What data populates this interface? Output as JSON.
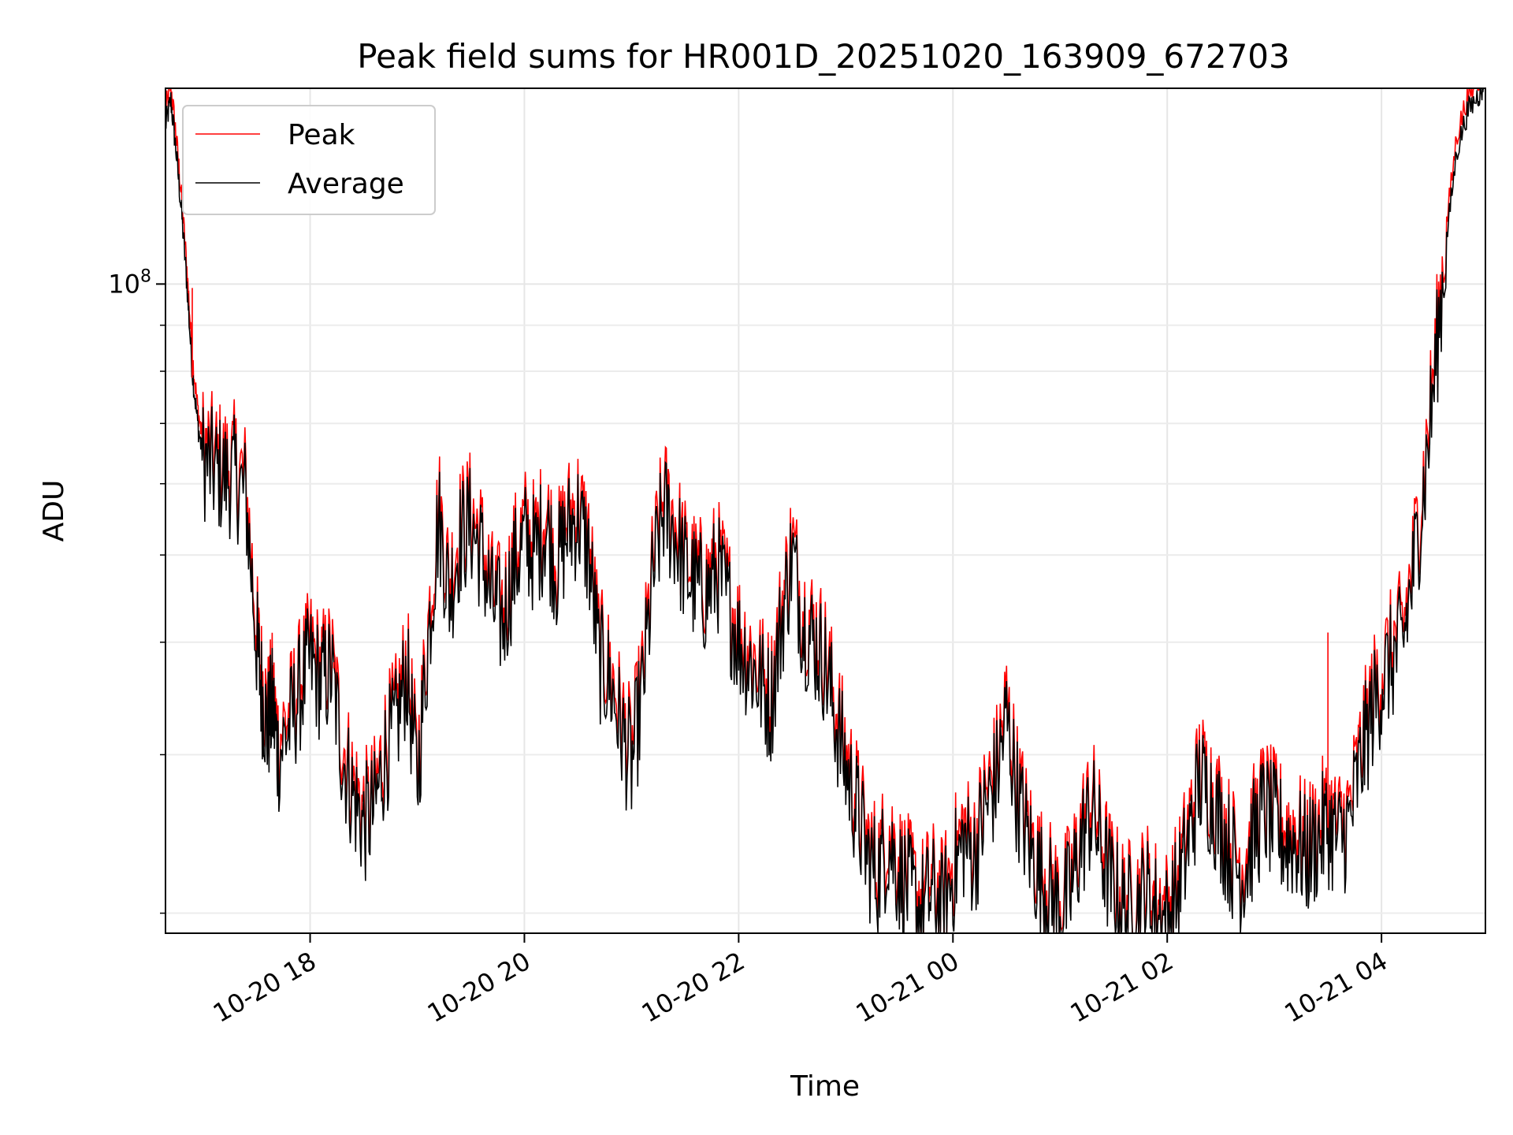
{
  "chart_data": {
    "type": "line",
    "title": "Peak field sums for HR001D_20251020_163909_672703",
    "xlabel": "Time",
    "ylabel": "ADU",
    "y_scale": "log",
    "ylim": [
      19000000,
      165000000
    ],
    "xlim_hours": [
      16.65,
      28.97
    ],
    "x_ticks": [
      {
        "hour": 18,
        "label": "10-20 18"
      },
      {
        "hour": 20,
        "label": "10-20 20"
      },
      {
        "hour": 22,
        "label": "10-20 22"
      },
      {
        "hour": 24,
        "label": "10-21 00"
      },
      {
        "hour": 26,
        "label": "10-21 02"
      },
      {
        "hour": 28,
        "label": "10-21 04"
      }
    ],
    "y_major_ticks": [
      {
        "value": 100000000,
        "base": "10",
        "exp": "8"
      }
    ],
    "y_minor_ticks": [
      20000000,
      30000000,
      40000000,
      50000000,
      60000000,
      70000000,
      80000000,
      90000000,
      200000000
    ],
    "grid": true,
    "legend": {
      "position": "upper-left"
    },
    "series": [
      {
        "name": "Peak",
        "color": "#ff0000",
        "spikes": [
          {
            "hour": 16.9,
            "value": 99000000
          },
          {
            "hour": 18.22,
            "value": 38000000
          },
          {
            "hour": 27.5,
            "value": 41000000
          }
        ]
      },
      {
        "name": "Average",
        "color": "#000000",
        "time_hours": [
          16.65,
          16.7,
          16.75,
          16.8,
          16.85,
          16.9,
          16.95,
          17.0,
          17.1,
          17.2,
          17.3,
          17.4,
          17.5,
          17.55,
          17.6,
          17.65,
          17.7,
          17.8,
          17.9,
          18.0,
          18.1,
          18.2,
          18.3,
          18.4,
          18.5,
          18.6,
          18.7,
          18.8,
          18.9,
          19.0,
          19.1,
          19.2,
          19.3,
          19.4,
          19.5,
          19.6,
          19.7,
          19.8,
          19.9,
          20.0,
          20.1,
          20.2,
          20.3,
          20.4,
          20.5,
          20.6,
          20.7,
          20.8,
          20.9,
          21.0,
          21.1,
          21.2,
          21.3,
          21.4,
          21.5,
          21.6,
          21.7,
          21.8,
          21.9,
          22.0,
          22.1,
          22.2,
          22.3,
          22.4,
          22.5,
          22.6,
          22.7,
          22.8,
          22.9,
          23.0,
          23.1,
          23.2,
          23.3,
          23.4,
          23.5,
          23.6,
          23.7,
          23.8,
          23.9,
          24.0,
          24.1,
          24.2,
          24.3,
          24.4,
          24.5,
          24.6,
          24.7,
          24.8,
          24.9,
          25.0,
          25.1,
          25.2,
          25.3,
          25.4,
          25.5,
          25.6,
          25.7,
          25.8,
          25.9,
          26.0,
          26.1,
          26.2,
          26.3,
          26.4,
          26.5,
          26.6,
          26.7,
          26.8,
          26.9,
          27.0,
          27.1,
          27.2,
          27.3,
          27.4,
          27.5,
          27.6,
          27.7,
          27.8,
          27.9,
          28.0,
          28.1,
          28.2,
          28.3,
          28.4,
          28.5,
          28.6,
          28.7,
          28.8,
          28.9,
          28.95
        ],
        "values": [
          150000000,
          160000000,
          140000000,
          120000000,
          100000000,
          80000000,
          70000000,
          64000000,
          62000000,
          61000000,
          61000000,
          58000000,
          40000000,
          35000000,
          32000000,
          34000000,
          30000000,
          32000000,
          35000000,
          38000000,
          36000000,
          37000000,
          30000000,
          27000000,
          25000000,
          26000000,
          30000000,
          32000000,
          37000000,
          28000000,
          40000000,
          55000000,
          45000000,
          52000000,
          54000000,
          50000000,
          44000000,
          42000000,
          48000000,
          52000000,
          50000000,
          54000000,
          48000000,
          53000000,
          55000000,
          50000000,
          38000000,
          36000000,
          32000000,
          29000000,
          35000000,
          47000000,
          56000000,
          53000000,
          48000000,
          46000000,
          45000000,
          48000000,
          44000000,
          40000000,
          38000000,
          36000000,
          34000000,
          42000000,
          50000000,
          42000000,
          40000000,
          38000000,
          33000000,
          29000000,
          26000000,
          23000000,
          22000000,
          24000000,
          22000000,
          21000000,
          20000000,
          21000000,
          20000000,
          22000000,
          24000000,
          23000000,
          26000000,
          28000000,
          33000000,
          27000000,
          24000000,
          22000000,
          21000000,
          20000000,
          21000000,
          24000000,
          26000000,
          23000000,
          21000000,
          20000000,
          20000000,
          21000000,
          20000000,
          19500000,
          21000000,
          24000000,
          28000000,
          27000000,
          25000000,
          23000000,
          22000000,
          24000000,
          26000000,
          25000000,
          24000000,
          24000000,
          23000000,
          24000000,
          25000000,
          24000000,
          25000000,
          29000000,
          33000000,
          36000000,
          38000000,
          40000000,
          48000000,
          60000000,
          80000000,
          110000000,
          140000000,
          155000000,
          162000000,
          165000000
        ]
      }
    ]
  }
}
